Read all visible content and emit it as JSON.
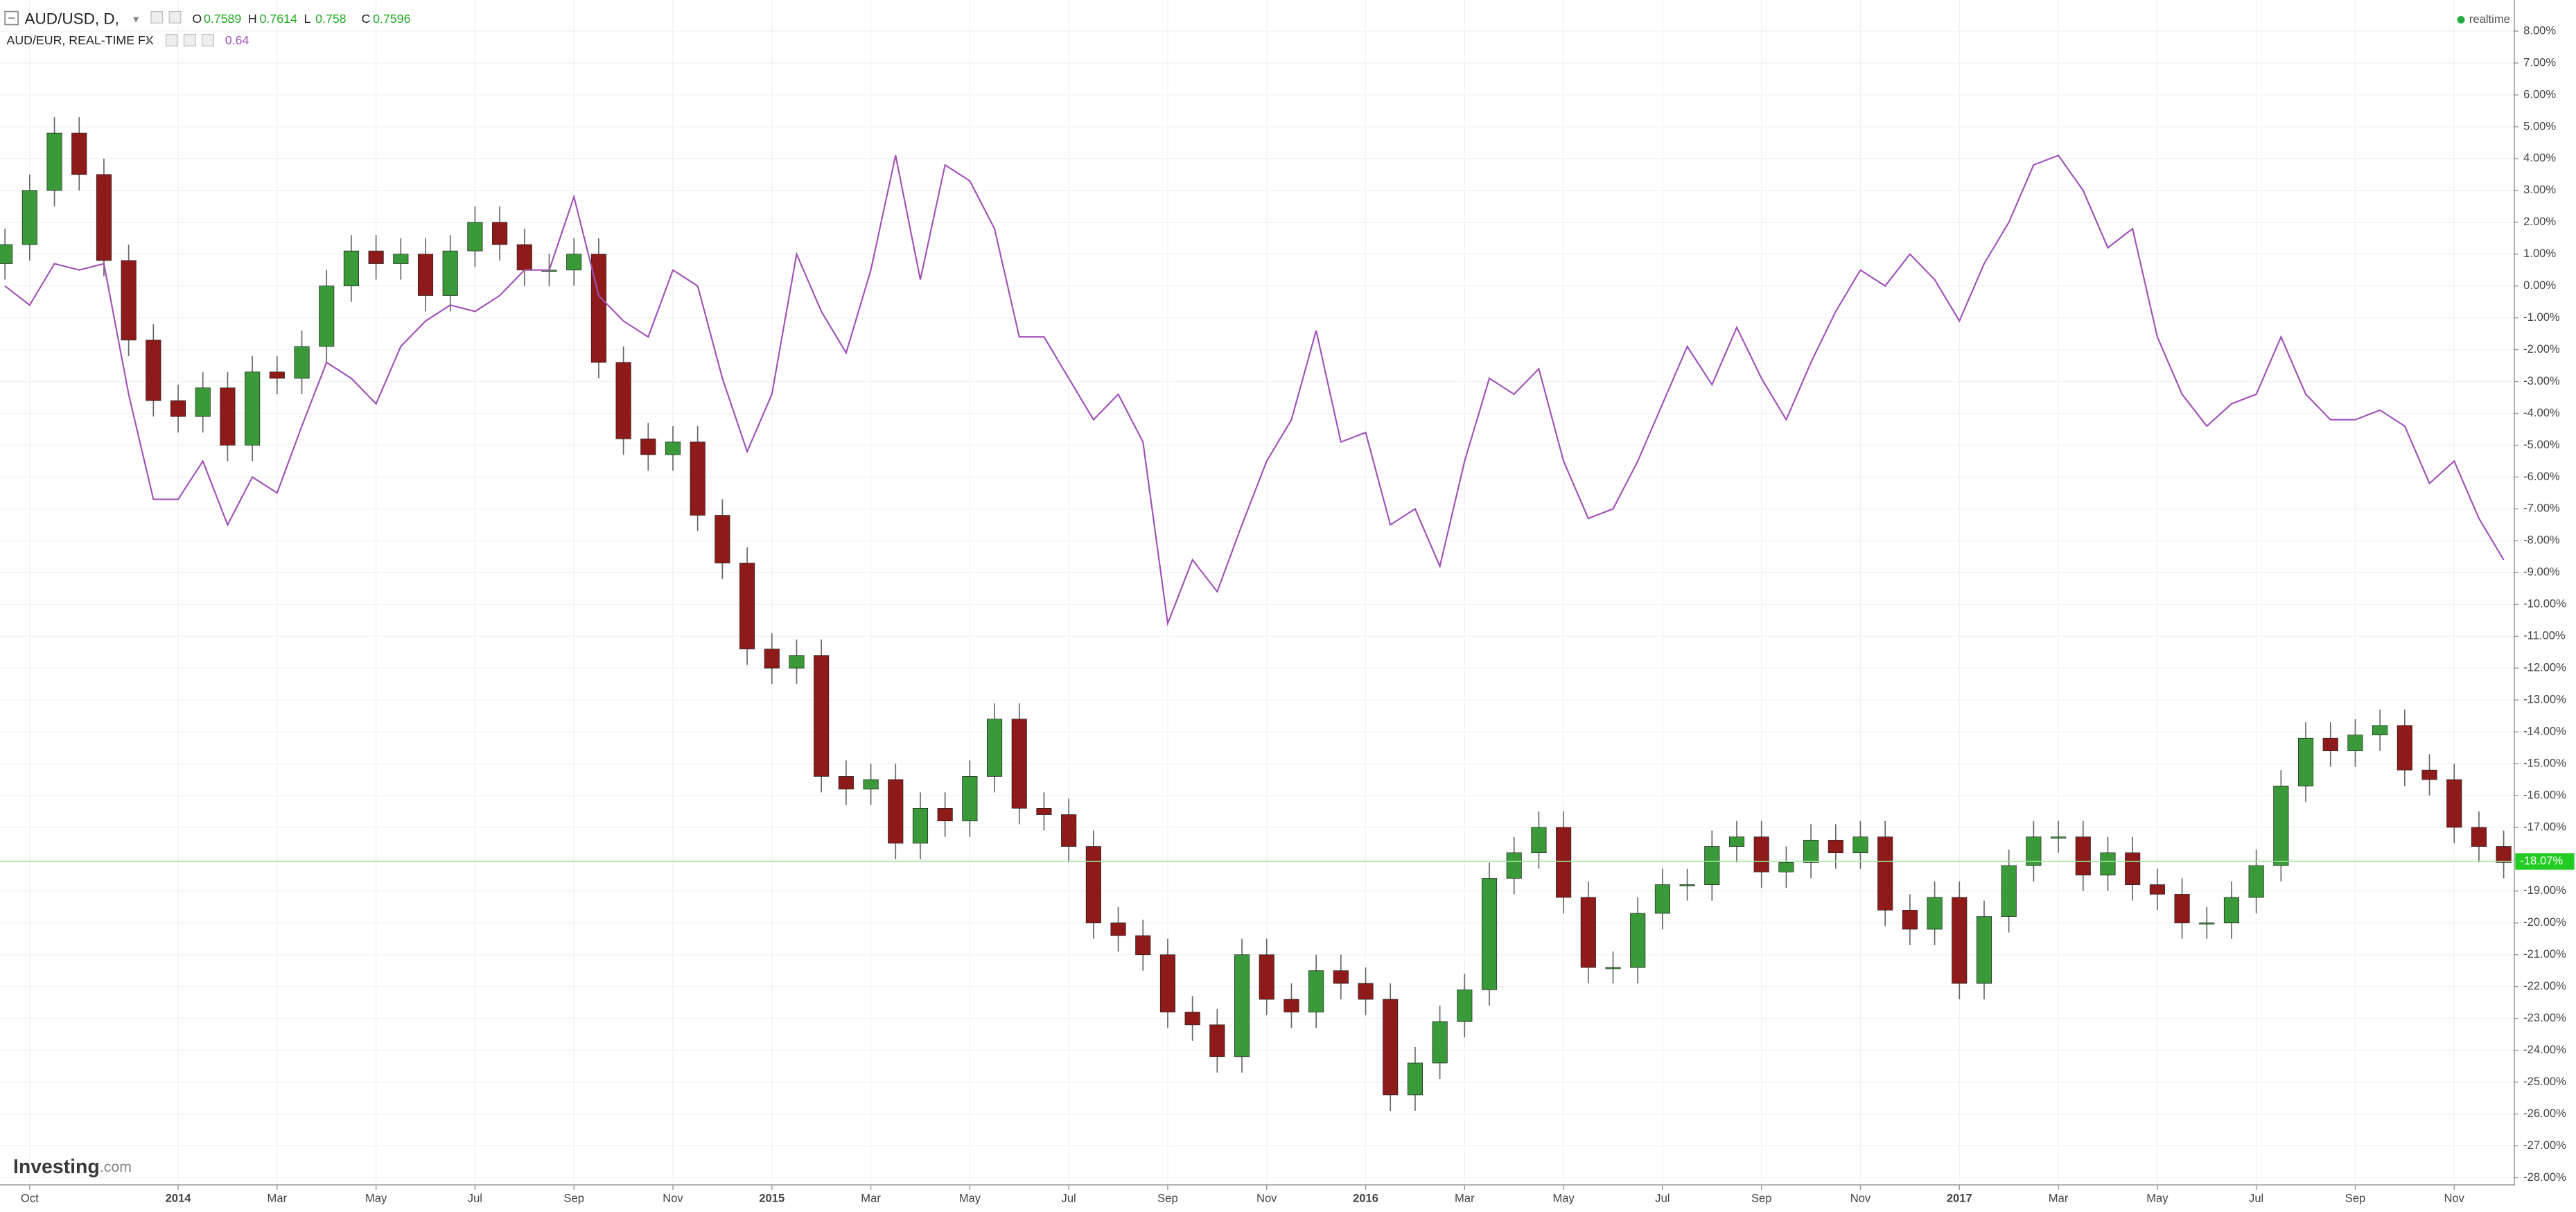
{
  "chart_data": {
    "type": "candlestick",
    "status": "realtime",
    "brand": {
      "name": "Investing",
      "domain": ".com"
    },
    "quote": [
      {
        "key": "O",
        "value": 0.7589
      },
      {
        "key": "H",
        "value": 0.7614
      },
      {
        "key": "L",
        "value": 0.758
      },
      {
        "key": "C",
        "value": 0.7596
      }
    ],
    "xlim": [
      0.4,
      51.2
    ],
    "xticks": [
      {
        "value": 1,
        "label": "Oct"
      },
      {
        "value": 4,
        "label": "2014"
      },
      {
        "value": 6,
        "label": "Mar"
      },
      {
        "value": 8,
        "label": "May"
      },
      {
        "value": 10,
        "label": "Jul"
      },
      {
        "value": 12,
        "label": "Sep"
      },
      {
        "value": 14,
        "label": "Nov"
      },
      {
        "value": 16,
        "label": "2015"
      },
      {
        "value": 18,
        "label": "Mar"
      },
      {
        "value": 20,
        "label": "May"
      },
      {
        "value": 22,
        "label": "Jul"
      },
      {
        "value": 24,
        "label": "Sep"
      },
      {
        "value": 26,
        "label": "Nov"
      },
      {
        "value": 28,
        "label": "2016"
      },
      {
        "value": 30,
        "label": "Mar"
      },
      {
        "value": 32,
        "label": "May"
      },
      {
        "value": 34,
        "label": "Jul"
      },
      {
        "value": 36,
        "label": "Sep"
      },
      {
        "value": 38,
        "label": "Nov"
      },
      {
        "value": 40,
        "label": "2017"
      },
      {
        "value": 42,
        "label": "Mar"
      },
      {
        "value": 44,
        "label": "May"
      },
      {
        "value": 46,
        "label": "Jul"
      },
      {
        "value": 48,
        "label": "Sep"
      },
      {
        "value": 50,
        "label": "Nov"
      }
    ],
    "ylim": [
      -28.15,
      8.98
    ],
    "yticks": [
      {
        "value": 8,
        "label": "8.00%"
      },
      {
        "value": 7,
        "label": "7.00%"
      },
      {
        "value": 6,
        "label": "6.00%"
      },
      {
        "value": 5,
        "label": "5.00%"
      },
      {
        "value": 4,
        "label": "4.00%"
      },
      {
        "value": 3,
        "label": "3.00%"
      },
      {
        "value": 2,
        "label": "2.00%"
      },
      {
        "value": 1,
        "label": "1.00%"
      },
      {
        "value": 0,
        "label": "0.00%"
      },
      {
        "value": -1,
        "label": "-1.00%"
      },
      {
        "value": -2,
        "label": "-2.00%"
      },
      {
        "value": -3,
        "label": "-3.00%"
      },
      {
        "value": -4,
        "label": "-4.00%"
      },
      {
        "value": -5,
        "label": "-5.00%"
      },
      {
        "value": -6,
        "label": "-6.00%"
      },
      {
        "value": -7,
        "label": "-7.00%"
      },
      {
        "value": -8,
        "label": "-8.00%"
      },
      {
        "value": -9,
        "label": "-9.00%"
      },
      {
        "value": -10,
        "label": "-10.00%"
      },
      {
        "value": -11,
        "label": "-11.00%"
      },
      {
        "value": -12,
        "label": "-12.00%"
      },
      {
        "value": -13,
        "label": "-13.00%"
      },
      {
        "value": -14,
        "label": "-14.00%"
      },
      {
        "value": -15,
        "label": "-15.00%"
      },
      {
        "value": -16,
        "label": "-16.00%"
      },
      {
        "value": -17,
        "label": "-17.00%"
      },
      {
        "value": -18,
        "label": "-18.00%"
      },
      {
        "value": -19,
        "label": "-19.00%"
      },
      {
        "value": -20,
        "label": "-20.00%"
      },
      {
        "value": -21,
        "label": "-21.00%"
      },
      {
        "value": -22,
        "label": "-22.00%"
      },
      {
        "value": -23,
        "label": "-23.00%"
      },
      {
        "value": -24,
        "label": "-24.00%"
      },
      {
        "value": -25,
        "label": "-25.00%"
      },
      {
        "value": -26,
        "label": "-26.00%"
      },
      {
        "value": -27,
        "label": "-27.00%"
      },
      {
        "value": -28,
        "label": "-28.00%"
      }
    ],
    "grid": true,
    "last_value": {
      "value": -18.07,
      "label": "-18.07%"
    },
    "last_color": "#22cc22",
    "x": [
      0.5,
      1,
      1.5,
      2,
      2.5,
      3,
      3.5,
      4,
      4.5,
      5,
      5.5,
      6,
      6.5,
      7,
      7.5,
      8,
      8.5,
      9,
      9.5,
      10,
      10.5,
      11,
      11.5,
      12,
      12.5,
      13,
      13.5,
      14,
      14.5,
      15,
      15.5,
      16,
      16.5,
      17,
      17.5,
      18,
      18.5,
      19,
      19.5,
      20,
      20.5,
      21,
      21.5,
      22,
      22.5,
      23,
      23.5,
      24,
      24.5,
      25,
      25.5,
      26,
      26.5,
      27,
      27.5,
      28,
      28.5,
      29,
      29.5,
      30,
      30.5,
      31,
      31.5,
      32,
      32.5,
      33,
      33.5,
      34,
      34.5,
      35,
      35.5,
      36,
      36.5,
      37,
      37.5,
      38,
      38.5,
      39,
      39.5,
      40,
      40.5,
      41,
      41.5,
      42,
      42.5,
      43,
      43.5,
      44,
      44.5,
      45,
      45.5,
      46,
      46.5,
      47,
      47.5,
      48,
      48.5,
      49,
      49.5,
      50,
      50.5,
      51
    ],
    "series": [
      {
        "name": "AUD/USD, D,",
        "up_color": "#3a9a3a",
        "down_color": "#8e1a1a",
        "wick_color": "#666666",
        "open": [
          0.7,
          1.3,
          3.0,
          4.8,
          3.5,
          0.8,
          -1.7,
          -3.6,
          -4.1,
          -3.2,
          -5.0,
          -2.7,
          -2.9,
          -1.9,
          0.0,
          1.1,
          0.7,
          1.0,
          -0.3,
          1.1,
          2.0,
          1.3,
          0.5,
          0.5,
          1.0,
          -2.4,
          -4.8,
          -5.3,
          -4.9,
          -7.2,
          -8.7,
          -11.4,
          -12.0,
          -11.6,
          -15.4,
          -15.8,
          -15.5,
          -17.5,
          -16.4,
          -16.8,
          -15.4,
          -13.6,
          -16.4,
          -16.6,
          -17.6,
          -20.0,
          -20.4,
          -21.0,
          -22.8,
          -23.2,
          -24.2,
          -21.0,
          -22.4,
          -22.8,
          -21.5,
          -21.9,
          -22.4,
          -25.4,
          -24.4,
          -23.1,
          -22.1,
          -18.6,
          -17.8,
          -17.0,
          -19.2,
          -21.4,
          -21.4,
          -19.7,
          -18.8,
          -18.8,
          -17.6,
          -17.3,
          -18.4,
          -18.1,
          -17.4,
          -17.8,
          -17.3,
          -19.6,
          -20.2,
          -19.2,
          -21.9,
          -19.8,
          -18.2,
          -17.3,
          -17.3,
          -18.5,
          -17.8,
          -18.8,
          -19.1,
          -20.0,
          -20.0,
          -19.2,
          -18.2,
          -15.7,
          -14.2,
          -14.6,
          -14.1,
          -13.8,
          -15.2,
          -15.5,
          -17.0,
          -17.6
        ],
        "high": [
          1.8,
          3.5,
          5.3,
          5.3,
          4.0,
          1.3,
          -1.2,
          -3.1,
          -2.7,
          -2.7,
          -2.2,
          -2.2,
          -1.4,
          0.5,
          1.6,
          1.6,
          1.5,
          1.5,
          1.6,
          2.5,
          2.5,
          1.8,
          1.0,
          1.5,
          1.5,
          -1.9,
          -4.3,
          -4.4,
          -4.4,
          -6.7,
          -8.2,
          -10.9,
          -11.1,
          -11.1,
          -14.9,
          -15.0,
          -15.0,
          -15.9,
          -15.9,
          -14.9,
          -13.1,
          -13.1,
          -15.9,
          -16.1,
          -17.1,
          -19.5,
          -19.9,
          -20.5,
          -22.3,
          -22.7,
          -20.5,
          -20.5,
          -21.9,
          -21.0,
          -21.0,
          -21.4,
          -21.9,
          -23.9,
          -22.6,
          -21.6,
          -18.1,
          -17.3,
          -16.5,
          -16.5,
          -18.7,
          -20.9,
          -19.2,
          -18.3,
          -18.3,
          -17.1,
          -16.8,
          -16.8,
          -17.6,
          -16.9,
          -16.9,
          -16.8,
          -16.8,
          -19.1,
          -18.7,
          -18.7,
          -19.3,
          -17.7,
          -16.8,
          -16.8,
          -16.8,
          -17.3,
          -17.3,
          -18.3,
          -18.6,
          -19.5,
          -18.7,
          -17.7,
          -15.2,
          -13.7,
          -13.7,
          -13.6,
          -13.3,
          -13.3,
          -14.7,
          -15.0,
          -16.5,
          -17.1
        ],
        "low": [
          0.2,
          0.8,
          2.5,
          3.0,
          0.3,
          -2.2,
          -4.1,
          -4.6,
          -4.6,
          -5.5,
          -5.5,
          -3.4,
          -3.4,
          -2.4,
          -0.5,
          0.2,
          0.2,
          -0.8,
          -0.8,
          0.6,
          0.8,
          0.0,
          0.0,
          0.0,
          -2.9,
          -5.3,
          -5.8,
          -5.8,
          -7.7,
          -9.2,
          -11.9,
          -12.5,
          -12.5,
          -15.9,
          -16.3,
          -16.3,
          -18.0,
          -18.0,
          -17.3,
          -17.3,
          -15.9,
          -16.9,
          -17.1,
          -18.1,
          -20.5,
          -20.9,
          -21.5,
          -23.3,
          -23.7,
          -24.7,
          -24.7,
          -22.9,
          -23.3,
          -23.3,
          -22.4,
          -22.9,
          -25.9,
          -25.9,
          -24.9,
          -23.6,
          -22.6,
          -19.1,
          -18.3,
          -19.7,
          -21.9,
          -21.9,
          -21.9,
          -20.2,
          -19.3,
          -19.3,
          -18.1,
          -18.9,
          -18.9,
          -18.6,
          -18.3,
          -18.3,
          -20.1,
          -20.7,
          -20.7,
          -22.4,
          -22.4,
          -20.3,
          -18.7,
          -17.8,
          -19.0,
          -19.0,
          -19.3,
          -19.6,
          -20.5,
          -20.5,
          -20.5,
          -19.7,
          -18.7,
          -16.2,
          -15.1,
          -15.1,
          -14.6,
          -15.7,
          -16.0,
          -17.5,
          -18.1,
          -18.6
        ],
        "close": [
          1.3,
          3.0,
          4.8,
          3.5,
          0.8,
          -1.7,
          -3.6,
          -4.1,
          -3.2,
          -5.0,
          -2.7,
          -2.9,
          -1.9,
          0.0,
          1.1,
          0.7,
          1.0,
          -0.3,
          1.1,
          2.0,
          1.3,
          0.5,
          0.5,
          1.0,
          -2.4,
          -4.8,
          -5.3,
          -4.9,
          -7.2,
          -8.7,
          -11.4,
          -12.0,
          -11.6,
          -15.4,
          -15.8,
          -15.5,
          -17.5,
          -16.4,
          -16.8,
          -15.4,
          -13.6,
          -16.4,
          -16.6,
          -17.6,
          -20.0,
          -20.4,
          -21.0,
          -22.8,
          -23.2,
          -24.2,
          -21.0,
          -22.4,
          -22.8,
          -21.5,
          -21.9,
          -22.4,
          -25.4,
          -24.4,
          -23.1,
          -22.1,
          -18.6,
          -17.8,
          -17.0,
          -19.2,
          -21.4,
          -21.4,
          -19.7,
          -18.8,
          -18.8,
          -17.6,
          -17.3,
          -18.4,
          -18.1,
          -17.4,
          -17.8,
          -17.3,
          -19.6,
          -20.2,
          -19.2,
          -21.9,
          -19.8,
          -18.2,
          -17.3,
          -17.3,
          -18.5,
          -17.8,
          -18.8,
          -19.1,
          -20.0,
          -20.0,
          -19.2,
          -18.2,
          -15.7,
          -14.2,
          -14.6,
          -14.1,
          -13.8,
          -15.2,
          -15.5,
          -17.0,
          -17.6,
          -18.1
        ]
      },
      {
        "name": "AUD/EUR, REAL-TIME FX",
        "color": "#a050b8",
        "last": 0.64,
        "values": [
          0.0,
          -0.6,
          0.7,
          0.5,
          0.7,
          -3.4,
          -6.7,
          -6.7,
          -5.5,
          -7.5,
          -6.0,
          -6.5,
          -4.4,
          -2.4,
          -2.9,
          -3.7,
          -1.9,
          -1.1,
          -0.6,
          -0.8,
          -0.3,
          0.5,
          0.5,
          2.8,
          -0.3,
          -1.1,
          -1.6,
          0.5,
          0.0,
          -2.9,
          -5.2,
          -3.4,
          1.0,
          -0.8,
          -2.1,
          0.5,
          4.1,
          0.2,
          3.8,
          3.3,
          1.8,
          -1.6,
          -1.6,
          -2.9,
          -4.2,
          -3.4,
          -4.9,
          -10.6,
          -8.6,
          -9.6,
          -7.5,
          -5.5,
          -4.2,
          -1.4,
          -4.9,
          -4.6,
          -7.5,
          -7.0,
          -8.8,
          -5.5,
          -2.9,
          -3.4,
          -2.6,
          -5.5,
          -7.3,
          -7.0,
          -5.5,
          -3.7,
          -1.9,
          -3.1,
          -1.3,
          -2.9,
          -4.2,
          -2.4,
          -0.8,
          0.5,
          0.0,
          1.0,
          0.2,
          -1.1,
          0.7,
          2.0,
          3.8,
          4.1,
          3.0,
          1.2,
          1.8,
          -1.6,
          -3.4,
          -4.4,
          -3.7,
          -3.4,
          -1.6,
          -3.4,
          -4.2,
          -4.2,
          -3.9,
          -4.4,
          -6.2,
          -5.5,
          -7.3,
          -8.6
        ]
      }
    ]
  }
}
